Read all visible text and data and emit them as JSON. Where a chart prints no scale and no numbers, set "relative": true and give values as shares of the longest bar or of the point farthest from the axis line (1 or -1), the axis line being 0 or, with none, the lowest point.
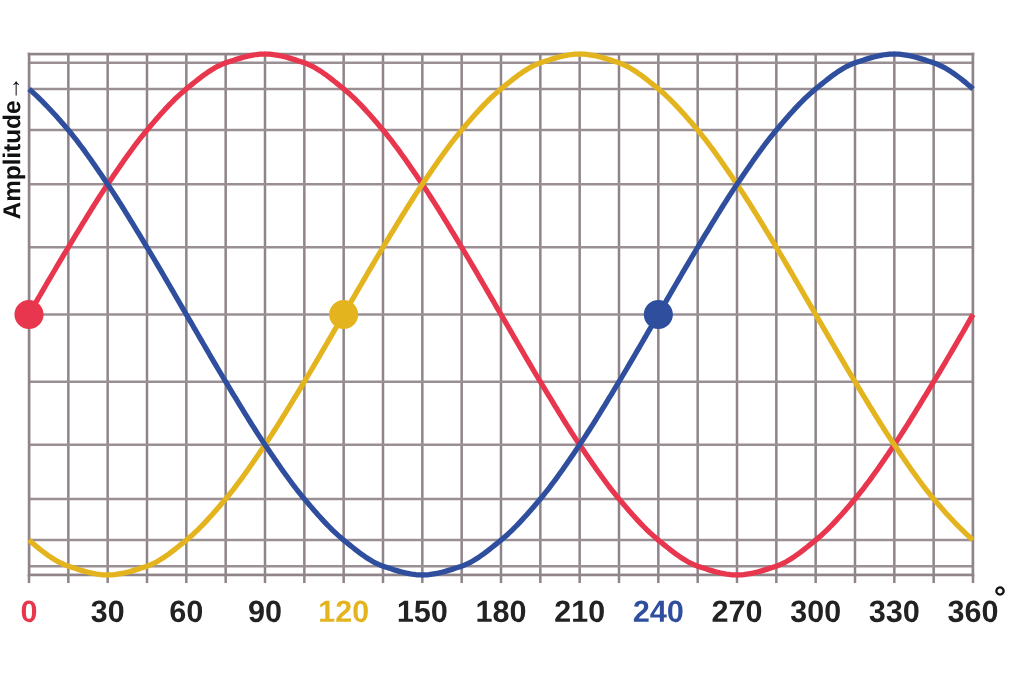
{
  "chart_data": {
    "type": "line",
    "ylabel": "Amplitude→",
    "xlabel": "°",
    "relative": true,
    "grid": "x",
    "line_style": "solid",
    "x": [
      0,
      15,
      30,
      45,
      60,
      75,
      90,
      105,
      120,
      135,
      150,
      165,
      180,
      195,
      210,
      225,
      240,
      255,
      270,
      285,
      300,
      315,
      330,
      345,
      360
    ],
    "xlim": [
      0,
      360
    ],
    "xticks": [
      0,
      {
        "value": 15,
        "label": null
      },
      30,
      {
        "value": 45,
        "label": null
      },
      60,
      {
        "value": 75,
        "label": null
      },
      90,
      {
        "value": 105,
        "label": null
      },
      120,
      {
        "value": 135,
        "label": null
      },
      150,
      {
        "value": 165,
        "label": null
      },
      180,
      {
        "value": 195,
        "label": null
      },
      210,
      {
        "value": 225,
        "label": null
      },
      240,
      {
        "value": 255,
        "label": null
      },
      270,
      {
        "value": 285,
        "label": null
      },
      300,
      {
        "value": 315,
        "label": null
      },
      330,
      {
        "value": 345,
        "label": null
      },
      360
    ],
    "series": [
      {
        "color": "#e8364e",
        "values": [
          0.5,
          0.629,
          0.75,
          0.854,
          0.933,
          0.983,
          1,
          0.983,
          0.933,
          0.854,
          0.75,
          0.629,
          0.5,
          0.371,
          0.25,
          0.146,
          0.067,
          0.017,
          0,
          0.017,
          0.067,
          0.146,
          0.25,
          0.371,
          0.5
        ]
      },
      {
        "color": "#e4b41e",
        "values": [
          0.067,
          0.017,
          0,
          0.017,
          0.067,
          0.146,
          0.25,
          0.371,
          0.5,
          0.629,
          0.75,
          0.854,
          0.933,
          0.983,
          1,
          0.983,
          0.933,
          0.854,
          0.75,
          0.629,
          0.5,
          0.371,
          0.25,
          0.146,
          0.067
        ]
      },
      {
        "color": "#2f4e9e",
        "values": [
          0.933,
          0.854,
          0.75,
          0.629,
          0.5,
          0.371,
          0.25,
          0.146,
          0.067,
          0.017,
          0,
          0.017,
          0.067,
          0.146,
          0.25,
          0.371,
          0.5,
          0.629,
          0.75,
          0.854,
          0.933,
          0.983,
          1,
          0.983,
          0.933
        ]
      },
      {
        "type": "scatter",
        "marker": "circle",
        "color": "#e8364e",
        "x": [
          0
        ],
        "values": [
          0.5
        ]
      },
      {
        "type": "scatter",
        "marker": "circle",
        "color": "#e4b41e",
        "x": [
          120
        ],
        "values": [
          0.5
        ]
      },
      {
        "type": "scatter",
        "marker": "circle",
        "color": "#2f4e9e",
        "x": [
          240
        ],
        "values": [
          0.5
        ]
      }
    ],
    "ref_lines": [
      {
        "axis": "y",
        "value": 0,
        "color": "#9a8f95"
      },
      {
        "axis": "y",
        "value": 0.017,
        "color": "#9a8f95"
      },
      {
        "axis": "y",
        "value": 0.067,
        "color": "#9a8f95"
      },
      {
        "axis": "y",
        "value": 0.146,
        "color": "#9a8f95"
      },
      {
        "axis": "y",
        "value": 0.25,
        "color": "#9a8f95"
      },
      {
        "axis": "y",
        "value": 0.371,
        "color": "#9a8f95"
      },
      {
        "axis": "y",
        "value": 0.5,
        "color": "#9a8f95"
      },
      {
        "axis": "y",
        "value": 0.629,
        "color": "#9a8f95"
      },
      {
        "axis": "y",
        "value": 0.75,
        "color": "#9a8f95"
      },
      {
        "axis": "y",
        "value": 0.854,
        "color": "#9a8f95"
      },
      {
        "axis": "y",
        "value": 0.933,
        "color": "#9a8f95"
      },
      {
        "axis": "y",
        "value": 0.983,
        "color": "#9a8f95"
      },
      {
        "axis": "y",
        "value": 1,
        "color": "#9a8f95"
      }
    ]
  }
}
